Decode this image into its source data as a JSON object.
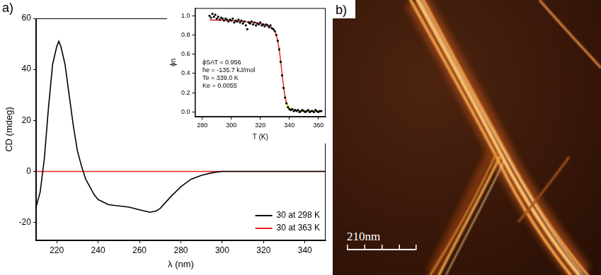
{
  "panel_labels": [
    "a)",
    "b)"
  ],
  "chart_data": [
    {
      "type": "line",
      "x_label": "λ (nm)",
      "y_label": "CD (mdeg)",
      "x": [
        210,
        212,
        214,
        216,
        218,
        220,
        221,
        222,
        224,
        226,
        228,
        230,
        232,
        234,
        236,
        238,
        240,
        245,
        250,
        255,
        260,
        265,
        268,
        270,
        275,
        280,
        285,
        290,
        295,
        300,
        310,
        320,
        330,
        340,
        350
      ],
      "series": [
        {
          "name": "30 at 298 K",
          "color": "#000000",
          "values": [
            -14,
            -8,
            5,
            25,
            42,
            49,
            51,
            49,
            42,
            30,
            18,
            8,
            2,
            -3,
            -6,
            -9,
            -11,
            -13,
            -13.5,
            -14,
            -15,
            -16,
            -15.5,
            -14.5,
            -10,
            -6,
            -3,
            -1.5,
            -0.5,
            0,
            0,
            0,
            0,
            0,
            0
          ]
        },
        {
          "name": "30 at 363 K",
          "color": "#e8231f",
          "values": [
            0,
            0,
            0,
            0,
            0,
            0,
            0,
            0,
            0,
            0,
            0,
            0,
            0,
            0,
            0,
            0,
            0,
            0,
            0,
            0,
            0,
            0,
            0,
            0,
            0,
            0,
            0,
            0,
            0,
            0,
            0,
            0,
            0,
            0,
            0
          ]
        }
      ],
      "xlim": [
        210,
        350
      ],
      "xticks": [
        220,
        240,
        260,
        280,
        300,
        320,
        340
      ],
      "ylim": [
        -27,
        60
      ],
      "yticks": [
        -20,
        0,
        20,
        40,
        60
      ],
      "grid": false,
      "legend": "lower right"
    },
    {
      "type": "scatter",
      "x_label": "T (K)",
      "y_label": "ϕn",
      "annotations": [
        "ϕSAT = 0.956",
        "he = -135.7 kJ/mol",
        "Te = 339.0 K",
        "Ke = 0.0055"
      ],
      "series": [
        {
          "type": "scatter",
          "color": "#000000",
          "marker": "circle",
          "x": [
            285,
            286,
            287,
            288,
            289,
            290,
            291,
            292,
            293,
            294,
            295,
            296,
            297,
            298,
            299,
            300,
            301,
            302,
            303,
            304,
            305,
            306,
            307,
            308,
            309,
            310,
            311,
            312,
            313,
            314,
            315,
            316,
            317,
            318,
            319,
            320,
            321,
            322,
            323,
            324,
            325,
            326,
            327,
            328,
            329,
            330,
            331,
            332,
            333,
            334,
            335,
            336,
            337,
            338,
            339,
            340,
            341,
            342,
            343,
            344,
            345,
            346,
            347,
            348,
            349,
            350,
            351,
            352,
            353,
            354,
            355,
            356,
            357,
            358,
            359,
            360,
            361,
            362
          ],
          "values": [
            1.0,
            0.98,
            1.02,
            0.99,
            1.01,
            0.97,
            0.99,
            0.96,
            0.98,
            0.97,
            0.95,
            0.97,
            0.96,
            0.94,
            0.96,
            0.95,
            0.97,
            0.93,
            0.95,
            0.94,
            0.96,
            0.93,
            0.95,
            0.92,
            0.94,
            0.9,
            0.86,
            0.93,
            0.92,
            0.94,
            0.91,
            0.93,
            0.9,
            0.92,
            0.91,
            0.93,
            0.9,
            0.91,
            0.89,
            0.91,
            0.9,
            0.88,
            0.9,
            0.87,
            0.86,
            0.84,
            0.8,
            0.74,
            0.65,
            0.52,
            0.38,
            0.25,
            0.15,
            0.09,
            0.05,
            0.03,
            0.02,
            0.03,
            0.01,
            0.02,
            0.01,
            0.02,
            0.0,
            0.01,
            0.02,
            0.01,
            0.0,
            0.01,
            0.02,
            0.0,
            0.01,
            0.01,
            0.0,
            0.02,
            0.01,
            0.0,
            0.01,
            0.01
          ]
        },
        {
          "type": "line",
          "color": "#e02020",
          "x": [
            285,
            295,
            305,
            315,
            320,
            325,
            328,
            330,
            331,
            332,
            333,
            334,
            335,
            336,
            337,
            338
          ],
          "values": [
            0.956,
            0.952,
            0.945,
            0.932,
            0.92,
            0.9,
            0.875,
            0.84,
            0.8,
            0.74,
            0.65,
            0.53,
            0.39,
            0.26,
            0.16,
            0.1
          ]
        },
        {
          "type": "line",
          "color": "#c8c800",
          "x": [
            336,
            338,
            340,
            345,
            350,
            355,
            362
          ],
          "values": [
            0.25,
            0.09,
            0.04,
            0.015,
            0.008,
            0.005,
            0.003
          ]
        }
      ],
      "xlim": [
        275,
        365
      ],
      "xticks": [
        280,
        300,
        320,
        340,
        360
      ],
      "ylim": [
        -0.05,
        1.08
      ],
      "yticks": [
        {
          "value": 0,
          "label": "0.0"
        },
        0.2,
        0.4,
        0.6,
        0.8,
        {
          "value": 1,
          "label": "1.0"
        }
      ],
      "grid": false
    }
  ],
  "afm_image": {
    "scale_bar": "210nm"
  }
}
